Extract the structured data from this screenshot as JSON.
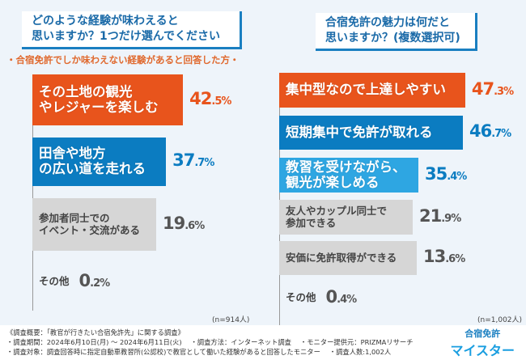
{
  "left": {
    "question": [
      "どのような経験が味わえると",
      "思いますか？1つだけ選んでください"
    ],
    "subtitle": "・合宿免許でしか味わえない経験があると回答した方・",
    "n": "(n=914人)"
  },
  "right": {
    "question": [
      "合宿免許の魅力は何だと",
      "思いますか？(複数選択可)"
    ],
    "n": "(n=1,002人)"
  },
  "footer": {
    "lines": [
      "《調査概要：「教官が行きたい合宿免許先」に関する調査》",
      "・調査期間：2024年6月10日(月) ～ 2024年6月11日(火)　 ・調査方法：インターネット調査　 ・モニター提供元：PRIZMAリサーチ",
      "・調査対象：調査回答時に指定自動車教習所(公認校)で教官として働いた経験があると回答したモニター　 ・調査人数:1,002人"
    ]
  },
  "logo": {
    "line1": "合宿免許",
    "line2": "マイスター"
  },
  "colors": {
    "orange": "#e8541c",
    "blue": "#0b7cc1",
    "lightblue": "#2ea6e2",
    "grey": "#d6d6d6"
  },
  "chart_data": [
    {
      "type": "bar",
      "orientation": "horizontal",
      "unit": "%",
      "categories": [
        "その土地の観光やレジャーを楽しむ",
        "田舎や地方の広い道を走れる",
        "参加者同士でのイベント・交流がある",
        "その他"
      ],
      "values": [
        42.5,
        37.7,
        19.6,
        0.2
      ],
      "xlim": [
        0,
        50
      ]
    },
    {
      "type": "bar",
      "orientation": "horizontal",
      "unit": "%",
      "categories": [
        "集中型なので上達しやすい",
        "短期集中で免許が取れる",
        "教習を受けながら、観光が楽しめる",
        "友人やカップル同士で参加できる",
        "安価に免許取得ができる",
        "その他"
      ],
      "values": [
        47.3,
        46.7,
        35.4,
        21.9,
        13.6,
        0.4
      ],
      "xlim": [
        0,
        50
      ]
    }
  ]
}
